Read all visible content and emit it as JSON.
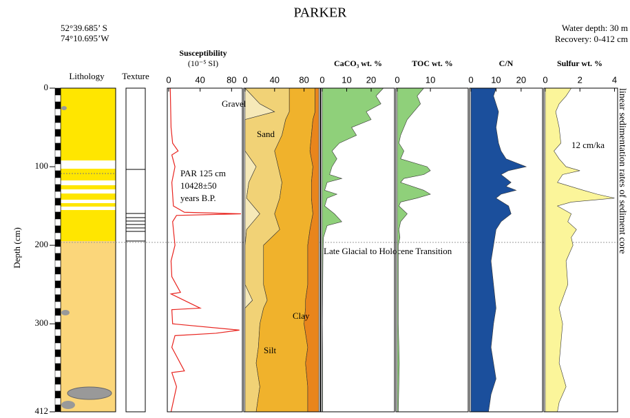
{
  "header": {
    "title": "PARKER",
    "latitude": "52°39.685’ S",
    "longitude": "74°10.695’W",
    "water_depth": "Water depth:  30   m",
    "recovery": "Recovery: 0-412 cm",
    "side_note": "linear sedimentation rates of sediment core"
  },
  "columns": {
    "lithology": "Lithology",
    "texture": "Texture"
  },
  "depth_axis": {
    "title": "Depth (cm)",
    "ylim": [
      0,
      412
    ],
    "yticks": [
      0,
      100,
      200,
      300,
      412
    ]
  },
  "chart_data": [
    {
      "type": "line",
      "title": "Susceptibility",
      "subtitle": "(10⁻⁵ SI)",
      "color": "#e8231e",
      "xlim": [
        0,
        92
      ],
      "xticks": [
        0,
        40,
        80
      ],
      "annotations": [
        "PAR 125 cm",
        "10428±50",
        "years B.P."
      ],
      "y": [
        0,
        50,
        70,
        80,
        85,
        100,
        120,
        150,
        158,
        160,
        162,
        170,
        200,
        220,
        240,
        260,
        262,
        280,
        282,
        300,
        308,
        312,
        315,
        330,
        360,
        362,
        380,
        412
      ],
      "values": [
        2,
        3,
        5,
        12,
        4,
        8,
        4,
        6,
        20,
        92,
        10,
        5,
        8,
        3,
        4,
        15,
        3,
        40,
        4,
        5,
        90,
        60,
        8,
        4,
        20,
        4,
        10,
        3
      ]
    },
    {
      "type": "stacked_area",
      "xlim": [
        0,
        100
      ],
      "xticks": [
        0,
        40,
        80
      ],
      "annotations": [
        "Gravel",
        "Sand",
        "Silt",
        "Clay"
      ],
      "y": [
        0,
        20,
        30,
        40,
        60,
        80,
        100,
        120,
        140,
        160,
        180,
        200,
        250,
        270,
        280,
        300,
        330,
        350,
        380,
        412
      ],
      "series": [
        {
          "name": "Gravel",
          "color": "#f6e9b8",
          "values": [
            0,
            20,
            40,
            0,
            0,
            0,
            15,
            5,
            2,
            20,
            2,
            0,
            0,
            10,
            0,
            0,
            0,
            0,
            0,
            0
          ]
        },
        {
          "name": "Sand",
          "color": "#f1d276",
          "values": [
            60,
            40,
            20,
            55,
            50,
            40,
            30,
            45,
            45,
            20,
            45,
            25,
            25,
            20,
            25,
            20,
            18,
            15,
            20,
            15
          ]
        },
        {
          "name": "Silt",
          "color": "#f0b22c",
          "values": [
            35,
            35,
            35,
            37,
            40,
            48,
            47,
            40,
            43,
            52,
            41,
            60,
            60,
            52,
            57,
            60,
            67,
            67,
            65,
            70
          ]
        },
        {
          "name": "Clay",
          "color": "#e9851c",
          "values": [
            5,
            5,
            5,
            8,
            10,
            12,
            8,
            10,
            10,
            8,
            12,
            15,
            15,
            18,
            18,
            20,
            15,
            18,
            15,
            15
          ]
        }
      ]
    },
    {
      "type": "area",
      "title": "CaCO₃ wt. %",
      "color": "#8fd07a",
      "xlim": [
        0,
        29
      ],
      "xticks": [
        0,
        10,
        20
      ],
      "annotations": [
        "Late Glacial to Holocene Transition"
      ],
      "y": [
        0,
        10,
        20,
        30,
        40,
        50,
        60,
        70,
        80,
        90,
        100,
        110,
        115,
        120,
        130,
        135,
        140,
        150,
        160,
        170,
        175,
        185,
        190,
        210,
        250,
        300,
        350,
        412
      ],
      "values": [
        25,
        22,
        24,
        18,
        20,
        12,
        14,
        7,
        4,
        6,
        4,
        3,
        8,
        2,
        1,
        6,
        2,
        1,
        5,
        8,
        2,
        1,
        0.5,
        0.3,
        0.2,
        0.1,
        0.2,
        0.2
      ]
    },
    {
      "type": "area",
      "title": "TOC wt. %",
      "color": "#8fd07a",
      "xlim": [
        0,
        21
      ],
      "xticks": [
        0,
        10
      ],
      "y": [
        0,
        10,
        20,
        30,
        40,
        50,
        60,
        70,
        80,
        90,
        100,
        105,
        110,
        115,
        120,
        130,
        135,
        140,
        145,
        150,
        160,
        170,
        180,
        190,
        200,
        250,
        300,
        350,
        412
      ],
      "values": [
        8,
        6,
        7,
        5,
        3,
        2,
        1,
        0.5,
        2,
        1,
        9,
        10,
        8,
        2,
        1,
        8,
        10,
        6,
        1,
        0.5,
        3,
        1,
        0.5,
        0.8,
        0.3,
        0.3,
        0.3,
        0.6,
        0.3
      ]
    },
    {
      "type": "area",
      "title": "C/N",
      "color": "#1b4f9c",
      "xlim": [
        0,
        28
      ],
      "xticks": [
        0,
        10,
        20
      ],
      "y": [
        0,
        10,
        30,
        50,
        70,
        80,
        90,
        95,
        100,
        105,
        110,
        120,
        125,
        130,
        135,
        140,
        150,
        160,
        170,
        180,
        200,
        220,
        250,
        280,
        300,
        330,
        350,
        370,
        390,
        412
      ],
      "values": [
        10,
        9,
        11,
        10,
        11,
        12,
        14,
        18,
        22,
        15,
        12,
        16,
        14,
        18,
        12,
        10,
        15,
        16,
        12,
        10,
        9,
        8,
        9,
        10,
        9,
        8,
        9,
        10,
        8,
        7
      ]
    },
    {
      "type": "area",
      "title": "Sulfur wt. %",
      "color": "#fbf59a",
      "xlim": [
        0,
        4.1
      ],
      "xticks": [
        0,
        2,
        4
      ],
      "annotations": [
        "12 cm/ka"
      ],
      "y": [
        0,
        10,
        20,
        30,
        50,
        70,
        80,
        90,
        100,
        105,
        110,
        120,
        130,
        135,
        140,
        145,
        150,
        160,
        170,
        180,
        190,
        200,
        220,
        250,
        280,
        300,
        350,
        380,
        400,
        412
      ],
      "values": [
        1.5,
        1.2,
        0.8,
        0.6,
        0.8,
        0.9,
        0.5,
        0.8,
        1.2,
        2.0,
        1.0,
        0.7,
        2.2,
        3.0,
        4.0,
        1.5,
        0.7,
        1.5,
        1.3,
        1.8,
        1.5,
        1.6,
        1.2,
        1.3,
        0.8,
        1.0,
        0.8,
        1.2,
        0.8,
        0.7
      ]
    }
  ]
}
